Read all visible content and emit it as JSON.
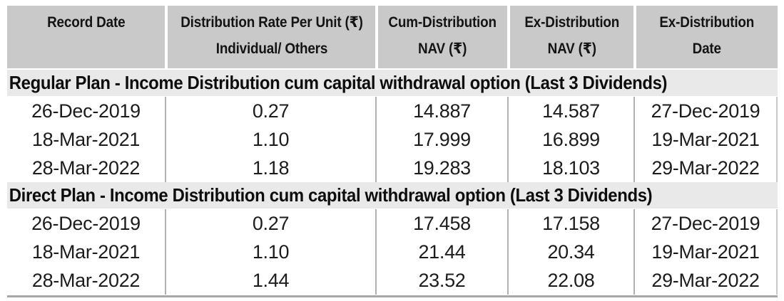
{
  "table": {
    "columns": [
      {
        "lines": [
          "Record Date"
        ]
      },
      {
        "lines": [
          "Distribution Rate Per Unit (₹)",
          "Individual/ Others"
        ]
      },
      {
        "lines": [
          "Cum-Distribution",
          "NAV (₹)"
        ]
      },
      {
        "lines": [
          "Ex-Distribution",
          "NAV (₹)"
        ]
      },
      {
        "lines": [
          "Ex-Distribution",
          "Date"
        ]
      }
    ],
    "sections": [
      {
        "title": "Regular Plan - Income Distribution cum capital withdrawal option (Last 3 Dividends)",
        "rows": [
          [
            "26-Dec-2019",
            "0.27",
            "14.887",
            "14.587",
            "27-Dec-2019"
          ],
          [
            "18-Mar-2021",
            "1.10",
            "17.999",
            "16.899",
            "19-Mar-2021"
          ],
          [
            "28-Mar-2022",
            "1.18",
            "19.283",
            "18.103",
            "29-Mar-2022"
          ]
        ]
      },
      {
        "title": "Direct Plan - Income Distribution cum capital withdrawal option (Last 3 Dividends)",
        "rows": [
          [
            "26-Dec-2019",
            "0.27",
            "17.458",
            "17.158",
            "27-Dec-2019"
          ],
          [
            "18-Mar-2021",
            "1.10",
            "21.44",
            "20.34",
            "19-Mar-2021"
          ],
          [
            "28-Mar-2022",
            "1.44",
            "23.52",
            "22.08",
            "29-Mar-2022"
          ]
        ]
      }
    ]
  },
  "colors": {
    "header_bg": "#c9c9c9",
    "section_bg": "#e9e9e9",
    "divider": "#b0b0b0",
    "bottom_rule": "#a6a6a6",
    "text": "#141414"
  }
}
